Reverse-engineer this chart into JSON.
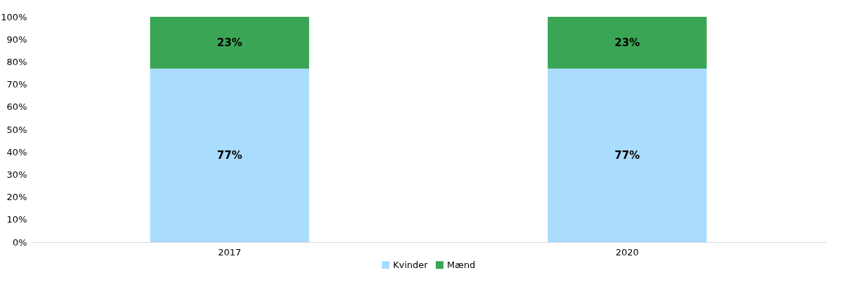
{
  "chart_data": {
    "type": "bar",
    "stacked": true,
    "categories": [
      "2017",
      "2020"
    ],
    "series": [
      {
        "name": "Kvinder",
        "color": "#aadcfe",
        "values": [
          77,
          77
        ],
        "value_labels": [
          "77%",
          "77%"
        ]
      },
      {
        "name": "Mænd",
        "color": "#3aa655",
        "values": [
          23,
          23
        ],
        "value_labels": [
          "23%",
          "23%"
        ]
      }
    ],
    "ylim": [
      0,
      100
    ],
    "yticks": [
      {
        "value": 0,
        "label": "0%"
      },
      {
        "value": 10,
        "label": "10%"
      },
      {
        "value": 20,
        "label": "20%"
      },
      {
        "value": 30,
        "label": "30%"
      },
      {
        "value": 40,
        "label": "40%"
      },
      {
        "value": 50,
        "label": "50%"
      },
      {
        "value": 60,
        "label": "60%"
      },
      {
        "value": 70,
        "label": "70%"
      },
      {
        "value": 80,
        "label": "80%"
      },
      {
        "value": 90,
        "label": "90%"
      },
      {
        "value": 100,
        "label": "100%"
      }
    ],
    "grid": false,
    "legend": "bottom"
  }
}
